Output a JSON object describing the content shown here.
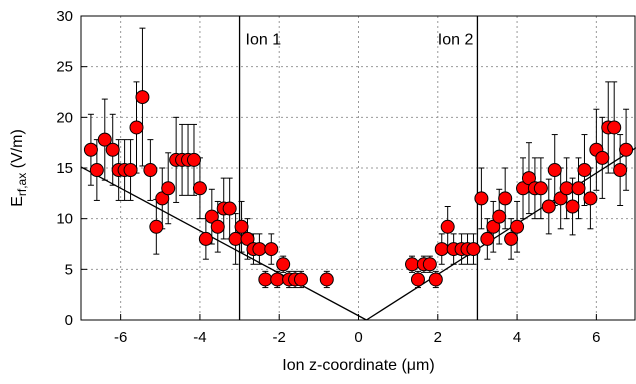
{
  "chart_data": {
    "type": "scatter",
    "xlabel": "Ion z-coordinate (μm)",
    "ylabel": {
      "main": "E",
      "sub": "rf,ax",
      "rest": " (V/m)"
    },
    "xlim": [
      -7,
      7
    ],
    "ylim": [
      0,
      30
    ],
    "x_ticks": [
      -6,
      -4,
      -2,
      0,
      2,
      4,
      6
    ],
    "y_ticks": [
      0,
      5,
      10,
      15,
      20,
      25,
      30
    ],
    "grid": true,
    "marker_color": "#ff0000",
    "annotations": [
      {
        "text": "Ion 1",
        "x": -2.85,
        "y": 27.2
      },
      {
        "text": "Ion 2",
        "x": 2.0,
        "y": 27.2
      }
    ],
    "vertical_lines": [
      -3,
      3
    ],
    "fit_lines": [
      {
        "x": [
          -7,
          0.2
        ],
        "y": [
          15.1,
          0
        ]
      },
      {
        "x": [
          0.2,
          7
        ],
        "y": [
          0,
          17
        ]
      }
    ],
    "points": [
      {
        "x": -6.75,
        "y": 16.8,
        "err": 3.5
      },
      {
        "x": -6.6,
        "y": 14.8,
        "err": 3.0
      },
      {
        "x": -6.4,
        "y": 17.8,
        "err": 4.0
      },
      {
        "x": -6.2,
        "y": 16.8,
        "err": 3.5
      },
      {
        "x": -6.05,
        "y": 14.8,
        "err": 3.0
      },
      {
        "x": -5.9,
        "y": 14.8,
        "err": 3.0
      },
      {
        "x": -5.75,
        "y": 14.8,
        "err": 3.0
      },
      {
        "x": -5.6,
        "y": 19.0,
        "err": 4.5
      },
      {
        "x": -5.45,
        "y": 22.0,
        "err": 6.8
      },
      {
        "x": -5.25,
        "y": 14.8,
        "err": 3.0
      },
      {
        "x": -5.1,
        "y": 9.2,
        "err": 2.7
      },
      {
        "x": -4.95,
        "y": 12.0,
        "err": 3.0
      },
      {
        "x": -4.8,
        "y": 13.0,
        "err": 3.5
      },
      {
        "x": -4.6,
        "y": 15.8,
        "err": 4.2
      },
      {
        "x": -4.45,
        "y": 15.8,
        "err": 3.5
      },
      {
        "x": -4.3,
        "y": 15.8,
        "err": 3.5
      },
      {
        "x": -4.15,
        "y": 15.8,
        "err": 3.5
      },
      {
        "x": -4.0,
        "y": 13.0,
        "err": 3.0
      },
      {
        "x": -3.85,
        "y": 8.0,
        "err": 2.0
      },
      {
        "x": -3.7,
        "y": 10.2,
        "err": 2.7
      },
      {
        "x": -3.55,
        "y": 9.2,
        "err": 2.5
      },
      {
        "x": -3.4,
        "y": 11.0,
        "err": 3.0
      },
      {
        "x": -3.25,
        "y": 11.0,
        "err": 3.0
      },
      {
        "x": -3.1,
        "y": 8.0,
        "err": 2.5
      },
      {
        "x": -2.95,
        "y": 9.2,
        "err": 2.5
      },
      {
        "x": -2.8,
        "y": 8.0,
        "err": 2.0
      },
      {
        "x": -2.65,
        "y": 7.0,
        "err": 1.5
      },
      {
        "x": -2.5,
        "y": 7.0,
        "err": 1.5
      },
      {
        "x": -2.35,
        "y": 4.0,
        "err": 0.8
      },
      {
        "x": -2.2,
        "y": 7.0,
        "err": 1.5
      },
      {
        "x": -2.05,
        "y": 4.0,
        "err": 0.8
      },
      {
        "x": -1.9,
        "y": 5.5,
        "err": 0.8
      },
      {
        "x": -1.75,
        "y": 4.0,
        "err": 0.8
      },
      {
        "x": -1.6,
        "y": 4.0,
        "err": 0.8
      },
      {
        "x": -1.45,
        "y": 4.0,
        "err": 0.8
      },
      {
        "x": -0.8,
        "y": 4.0,
        "err": 0.8
      },
      {
        "x": 1.35,
        "y": 5.5,
        "err": 0.8
      },
      {
        "x": 1.5,
        "y": 4.0,
        "err": 0.8
      },
      {
        "x": 1.65,
        "y": 5.5,
        "err": 0.8
      },
      {
        "x": 1.8,
        "y": 5.5,
        "err": 0.8
      },
      {
        "x": 1.95,
        "y": 4.0,
        "err": 0.8
      },
      {
        "x": 2.1,
        "y": 7.0,
        "err": 1.5
      },
      {
        "x": 2.25,
        "y": 9.2,
        "err": 2.0
      },
      {
        "x": 2.4,
        "y": 7.0,
        "err": 1.5
      },
      {
        "x": 2.6,
        "y": 7.0,
        "err": 1.5
      },
      {
        "x": 2.75,
        "y": 7.0,
        "err": 1.5
      },
      {
        "x": 2.9,
        "y": 7.0,
        "err": 1.5
      },
      {
        "x": 3.1,
        "y": 12.0,
        "err": 3.0
      },
      {
        "x": 3.25,
        "y": 8.0,
        "err": 2.0
      },
      {
        "x": 3.4,
        "y": 9.2,
        "err": 2.5
      },
      {
        "x": 3.55,
        "y": 10.2,
        "err": 2.7
      },
      {
        "x": 3.7,
        "y": 12.0,
        "err": 3.0
      },
      {
        "x": 3.85,
        "y": 8.0,
        "err": 2.0
      },
      {
        "x": 4.0,
        "y": 9.2,
        "err": 2.5
      },
      {
        "x": 4.15,
        "y": 13.0,
        "err": 3.0
      },
      {
        "x": 4.3,
        "y": 14.0,
        "err": 3.5
      },
      {
        "x": 4.45,
        "y": 13.0,
        "err": 3.0
      },
      {
        "x": 4.6,
        "y": 13.0,
        "err": 3.0
      },
      {
        "x": 4.8,
        "y": 11.2,
        "err": 2.7
      },
      {
        "x": 4.95,
        "y": 14.8,
        "err": 3.5
      },
      {
        "x": 5.1,
        "y": 12.0,
        "err": 3.0
      },
      {
        "x": 5.25,
        "y": 13.0,
        "err": 3.0
      },
      {
        "x": 5.4,
        "y": 11.2,
        "err": 2.8
      },
      {
        "x": 5.55,
        "y": 13.0,
        "err": 3.0
      },
      {
        "x": 5.7,
        "y": 14.8,
        "err": 3.5
      },
      {
        "x": 5.85,
        "y": 12.0,
        "err": 3.0
      },
      {
        "x": 6.0,
        "y": 16.8,
        "err": 4.0
      },
      {
        "x": 6.15,
        "y": 16.0,
        "err": 4.0
      },
      {
        "x": 6.3,
        "y": 19.0,
        "err": 4.5
      },
      {
        "x": 6.45,
        "y": 19.0,
        "err": 4.5
      },
      {
        "x": 6.6,
        "y": 14.8,
        "err": 3.5
      },
      {
        "x": 6.75,
        "y": 16.8,
        "err": 4.0
      }
    ]
  }
}
